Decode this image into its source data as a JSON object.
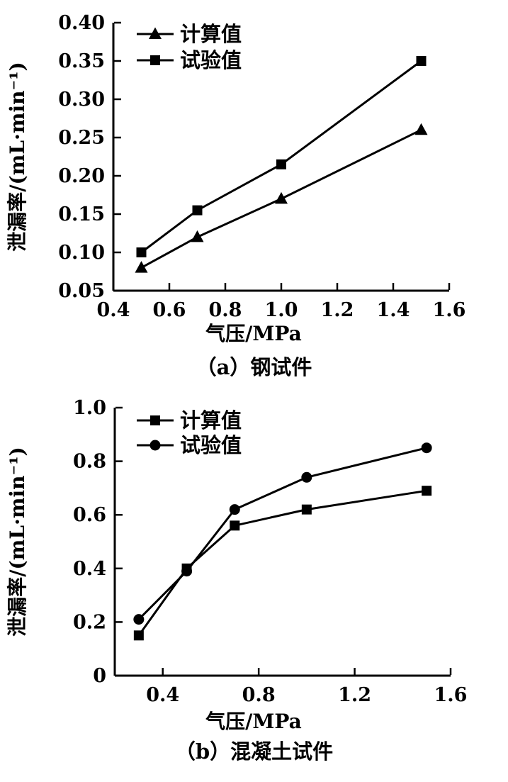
{
  "page": {
    "background_color": "#ffffff",
    "ink_color": "#000000"
  },
  "chart_data": [
    {
      "type": "line",
      "panel": "a",
      "title": "（a）钢试件",
      "xlabel": "气压/MPa",
      "ylabel": "泄漏率/(mL·min⁻¹)",
      "xlim": [
        0.4,
        1.6
      ],
      "ylim": [
        0.05,
        0.4
      ],
      "x_ticks": [
        0.4,
        0.6,
        0.8,
        1.0,
        1.2,
        1.4,
        1.6
      ],
      "x_tick_labels": [
        "0.4",
        "0.6",
        "0.8",
        "1.0",
        "1.2",
        "1.4",
        "1.6"
      ],
      "y_ticks": [
        0.05,
        0.1,
        0.15,
        0.2,
        0.25,
        0.3,
        0.35,
        0.4
      ],
      "y_tick_labels": [
        "0.05",
        "0.10",
        "0.15",
        "0.20",
        "0.25",
        "0.30",
        "0.35",
        "0.40"
      ],
      "grid": false,
      "legend_position": "inside-top-left",
      "line_color": "#000000",
      "series": [
        {
          "name": "计算值",
          "marker": "triangle",
          "x": [
            0.5,
            0.7,
            1.0,
            1.5
          ],
          "y": [
            0.08,
            0.12,
            0.17,
            0.26
          ]
        },
        {
          "name": "试验值",
          "marker": "square",
          "x": [
            0.5,
            0.7,
            1.0,
            1.5
          ],
          "y": [
            0.1,
            0.155,
            0.215,
            0.35
          ]
        }
      ]
    },
    {
      "type": "line",
      "panel": "b",
      "title": "（b）混凝土试件",
      "xlabel": "气压/MPa",
      "ylabel": "泄漏率/(mL·min⁻¹)",
      "xlim": [
        0.2,
        1.6
      ],
      "ylim": [
        0,
        1.0
      ],
      "x_ticks": [
        0.4,
        0.8,
        1.2,
        1.6
      ],
      "x_tick_labels": [
        "0.4",
        "0.8",
        "1.2",
        "1.6"
      ],
      "y_ticks": [
        0,
        0.2,
        0.4,
        0.6,
        0.8,
        1.0
      ],
      "y_tick_labels": [
        "0",
        "0.2",
        "0.4",
        "0.6",
        "0.8",
        "1.0"
      ],
      "grid": false,
      "legend_position": "inside-top-left",
      "line_color": "#000000",
      "series": [
        {
          "name": "计算值",
          "marker": "square",
          "x": [
            0.3,
            0.5,
            0.7,
            1.0,
            1.5
          ],
          "y": [
            0.15,
            0.4,
            0.56,
            0.62,
            0.69
          ]
        },
        {
          "name": "试验值",
          "marker": "circle",
          "x": [
            0.3,
            0.5,
            0.7,
            1.0,
            1.5
          ],
          "y": [
            0.21,
            0.39,
            0.62,
            0.74,
            0.85
          ]
        }
      ]
    }
  ]
}
